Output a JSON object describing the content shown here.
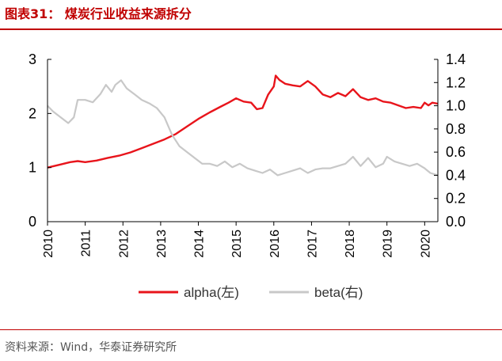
{
  "figure_title": "图表31： 煤炭行业收益来源拆分",
  "source": "资料来源：Wind，华泰证券研究所",
  "chart_data": {
    "type": "line",
    "x_ticks": [
      "2010",
      "2011",
      "2012",
      "2013",
      "2014",
      "2015",
      "2016",
      "2017",
      "2018",
      "2019",
      "2020"
    ],
    "xlim": [
      2010,
      2020.35
    ],
    "y_left": {
      "ticks": [
        "0",
        "1",
        "2",
        "3"
      ],
      "lim": [
        0,
        3
      ]
    },
    "y_right": {
      "ticks": [
        "0.0",
        "0.2",
        "0.4",
        "0.6",
        "0.8",
        "1.0",
        "1.2",
        "1.4"
      ],
      "lim": [
        0,
        1.4
      ]
    },
    "legend_position": "bottom",
    "series": [
      {
        "name": "alpha(左)",
        "axis": "left",
        "color": "#e8141b",
        "x": [
          2010.0,
          2010.3,
          2010.6,
          2010.8,
          2011.0,
          2011.3,
          2011.6,
          2011.9,
          2012.2,
          2012.5,
          2012.8,
          2013.1,
          2013.4,
          2013.7,
          2014.0,
          2014.3,
          2014.6,
          2014.8,
          2015.0,
          2015.2,
          2015.4,
          2015.55,
          2015.7,
          2015.85,
          2016.0,
          2016.05,
          2016.15,
          2016.3,
          2016.5,
          2016.7,
          2016.9,
          2017.1,
          2017.3,
          2017.5,
          2017.7,
          2017.9,
          2018.1,
          2018.3,
          2018.5,
          2018.7,
          2018.9,
          2019.1,
          2019.3,
          2019.5,
          2019.7,
          2019.9,
          2020.0,
          2020.1,
          2020.2,
          2020.35
        ],
        "values": [
          1.0,
          1.05,
          1.1,
          1.12,
          1.1,
          1.13,
          1.18,
          1.22,
          1.28,
          1.36,
          1.44,
          1.52,
          1.62,
          1.76,
          1.9,
          2.02,
          2.13,
          2.2,
          2.28,
          2.22,
          2.2,
          2.08,
          2.1,
          2.35,
          2.5,
          2.7,
          2.62,
          2.55,
          2.52,
          2.5,
          2.6,
          2.5,
          2.35,
          2.3,
          2.38,
          2.32,
          2.45,
          2.3,
          2.25,
          2.28,
          2.22,
          2.2,
          2.15,
          2.1,
          2.12,
          2.1,
          2.2,
          2.15,
          2.2,
          2.18
        ]
      },
      {
        "name": "beta(右)",
        "axis": "right",
        "color": "#c8c8c8",
        "x": [
          2010.0,
          2010.15,
          2010.35,
          2010.55,
          2010.7,
          2010.8,
          2011.0,
          2011.2,
          2011.4,
          2011.55,
          2011.7,
          2011.8,
          2011.95,
          2012.1,
          2012.3,
          2012.5,
          2012.7,
          2012.9,
          2013.1,
          2013.3,
          2013.5,
          2013.7,
          2013.9,
          2014.1,
          2014.3,
          2014.5,
          2014.7,
          2014.9,
          2015.1,
          2015.3,
          2015.5,
          2015.7,
          2015.9,
          2016.1,
          2016.3,
          2016.5,
          2016.7,
          2016.9,
          2017.1,
          2017.3,
          2017.5,
          2017.7,
          2017.9,
          2018.1,
          2018.3,
          2018.5,
          2018.7,
          2018.9,
          2019.0,
          2019.2,
          2019.4,
          2019.6,
          2019.8,
          2020.0,
          2020.15,
          2020.35
        ],
        "values": [
          1.0,
          0.95,
          0.9,
          0.85,
          0.9,
          1.05,
          1.05,
          1.03,
          1.1,
          1.18,
          1.12,
          1.18,
          1.22,
          1.15,
          1.1,
          1.05,
          1.02,
          0.98,
          0.9,
          0.75,
          0.65,
          0.6,
          0.55,
          0.5,
          0.5,
          0.48,
          0.52,
          0.47,
          0.5,
          0.46,
          0.44,
          0.42,
          0.45,
          0.4,
          0.42,
          0.44,
          0.46,
          0.42,
          0.45,
          0.46,
          0.46,
          0.48,
          0.5,
          0.56,
          0.48,
          0.55,
          0.47,
          0.5,
          0.56,
          0.52,
          0.5,
          0.48,
          0.5,
          0.46,
          0.42,
          0.4
        ]
      }
    ]
  }
}
